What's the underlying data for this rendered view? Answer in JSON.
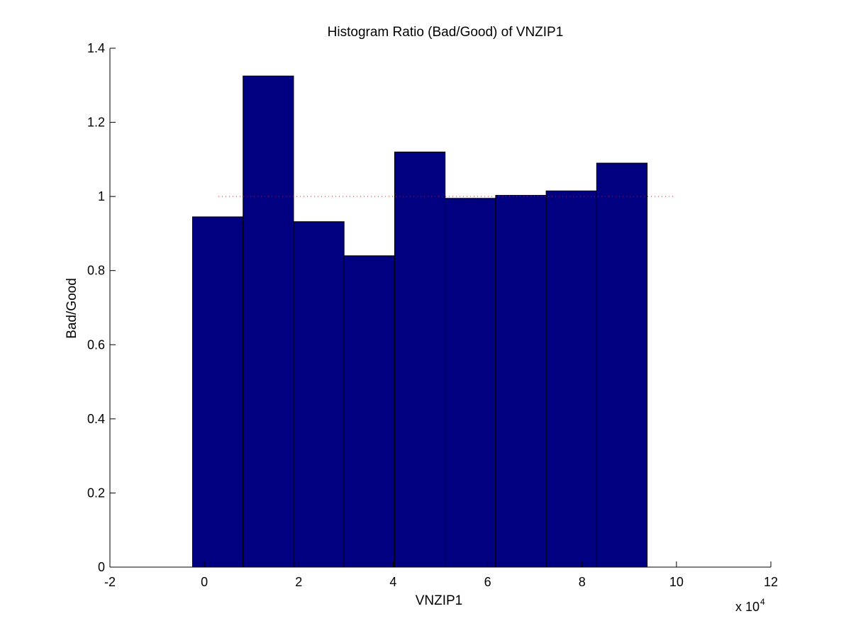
{
  "chart_data": {
    "type": "bar",
    "title": "Histogram Ratio (Bad/Good) of VNZIP1",
    "xlabel": "VNZIP1",
    "ylabel": "Bad/Good",
    "x_multiplier_base": "x 10",
    "x_multiplier_exp": "4",
    "xlim": [
      -2,
      12
    ],
    "ylim": [
      0,
      1.4
    ],
    "x_ticks": [
      -2,
      0,
      2,
      4,
      6,
      8,
      10,
      12
    ],
    "y_ticks": [
      0,
      0.2,
      0.4,
      0.6,
      0.8,
      1,
      1.2,
      1.4
    ],
    "x_tick_labels": [
      "-2",
      "0",
      "2",
      "4",
      "6",
      "8",
      "10",
      "12"
    ],
    "y_tick_labels": [
      "0",
      "0.2",
      "0.4",
      "0.6",
      "0.8",
      "1",
      "1.2",
      "1.4"
    ],
    "bin_edges": [
      -0.25,
      0.82,
      1.89,
      2.96,
      4.03,
      5.1,
      6.17,
      7.24,
      8.31,
      9.38
    ],
    "values": [
      0.945,
      1.325,
      0.932,
      0.84,
      1.12,
      0.995,
      1.003,
      1.015,
      1.09
    ],
    "reference_line": {
      "y": 1,
      "x": [
        0.3,
        9.95
      ],
      "style": "dotted"
    },
    "grid": false,
    "colors": {
      "bar_fill": "#000080",
      "bar_edge": "#000000",
      "reference_line": "#ff0000"
    }
  }
}
